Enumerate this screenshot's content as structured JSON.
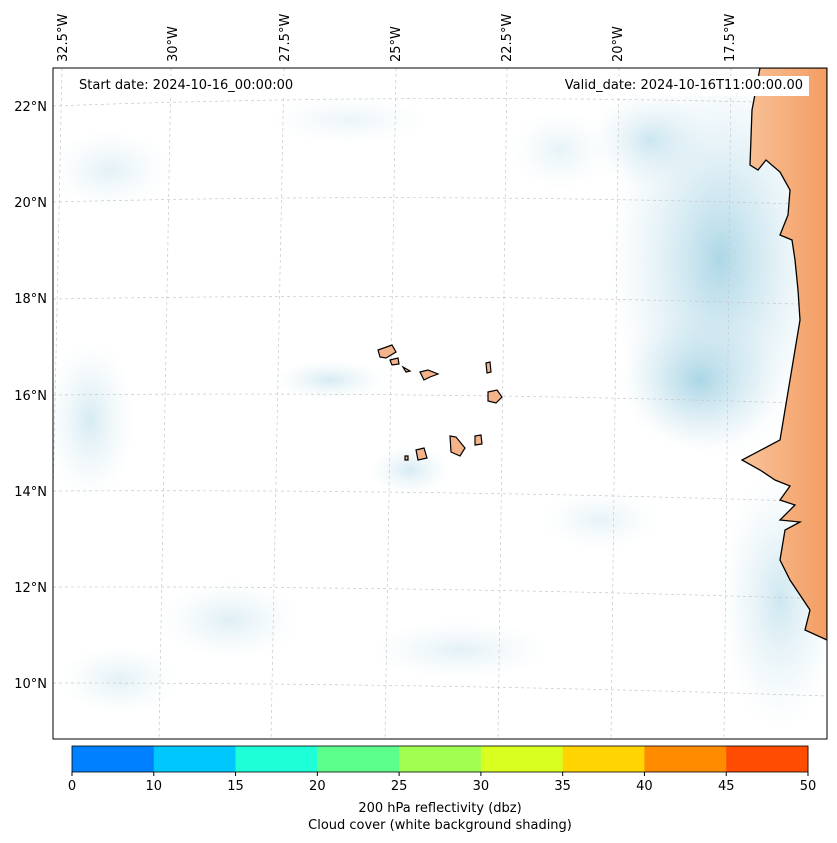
{
  "map": {
    "start_date_label": "Start date: 2024-10-16_00:00:00",
    "valid_date_label": "Valid_date: 2024-10-16T11:00:00.00",
    "longitude_labels": [
      "32.5°W",
      "30°W",
      "27.5°W",
      "25°W",
      "22.5°W",
      "20°W",
      "17.5°W"
    ],
    "latitude_labels": [
      "22°N",
      "20°N",
      "18°N",
      "16°N",
      "14°N",
      "12°N",
      "10°N"
    ],
    "region": "Cape Verde and West African coast",
    "colors": {
      "cloud": "#a8d4e4",
      "land_warm": "#f3a36c",
      "coast": "#000000"
    }
  },
  "colorbar": {
    "ticks": [
      "0",
      "10",
      "15",
      "20",
      "25",
      "30",
      "35",
      "40",
      "45",
      "50"
    ],
    "colors": [
      "#0080ff",
      "#00c8ff",
      "#1effd8",
      "#5cff8c",
      "#a0ff50",
      "#d8ff20",
      "#ffd400",
      "#ff8c00",
      "#ff4c00"
    ],
    "label_line1": "200 hPa reflectivity (dbz)",
    "label_line2": "Cloud cover (white background shading)"
  }
}
